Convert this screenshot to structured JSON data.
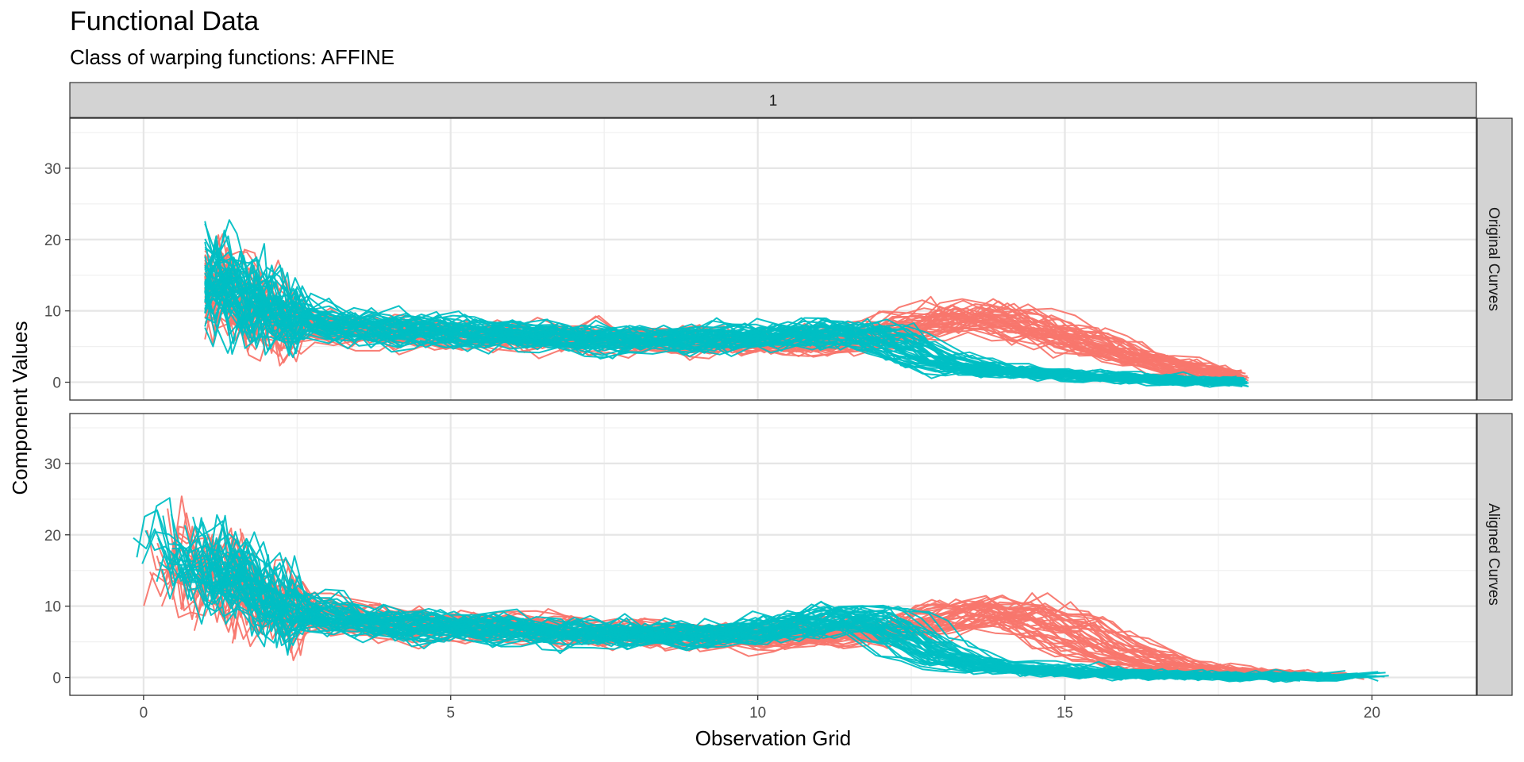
{
  "chart_data": {
    "type": "line",
    "title": "Functional Data",
    "subtitle": "Class of warping functions: AFFINE",
    "xlabel": "Observation Grid",
    "ylabel": "Component Values",
    "column_strip": "1",
    "xlim": [
      -1.2,
      21.7
    ],
    "ylim": [
      -2.5,
      37.0
    ],
    "x_ticks": [
      0,
      5,
      10,
      15,
      20
    ],
    "y_ticks": [
      0,
      10,
      20,
      30
    ],
    "grid": true,
    "legend": "none",
    "colors": {
      "red": "#F8766D",
      "teal": "#00BFC4"
    },
    "panels": [
      {
        "label": "Original Curves",
        "series_color_order": [
          "red",
          "teal"
        ],
        "mean_profiles": {
          "red": {
            "x": [
              1,
              1.25,
              1.5,
              1.75,
              2,
              2.5,
              3,
              4,
              5,
              6,
              7,
              8,
              9,
              10,
              11,
              12,
              12.5,
              13,
              13.5,
              14,
              14.5,
              15,
              15.5,
              16,
              16.5,
              17,
              17.5,
              18
            ],
            "y": [
              14,
              13,
              11.5,
              10,
              9,
              8,
              7.5,
              7,
              6.5,
              6.5,
              6.2,
              6,
              5.6,
              5.5,
              5.5,
              6.5,
              8,
              9,
              9,
              8.5,
              7.5,
              6.2,
              5,
              3.8,
              2.7,
              1.8,
              1.1,
              0.7
            ]
          },
          "teal": {
            "x": [
              1,
              1.25,
              1.5,
              1.75,
              2,
              2.5,
              3,
              4,
              5,
              6,
              7,
              8,
              9,
              10,
              11,
              12,
              12.5,
              13,
              13.5,
              14,
              15,
              16,
              17,
              18
            ],
            "y": [
              15,
              14,
              12,
              11,
              10,
              9,
              8,
              7.5,
              7,
              6.8,
              6.2,
              6,
              6,
              6.3,
              7,
              6.5,
              4,
              2.5,
              2,
              1.5,
              1,
              0.6,
              0.3,
              0
            ]
          }
        }
      },
      {
        "label": "Aligned Curves",
        "series_color_order": [
          "red",
          "teal"
        ],
        "mean_profiles": {
          "red": {
            "x": [
              0,
              0.5,
              1,
              1.5,
              2,
              2.5,
              3,
              4,
              5,
              6,
              7,
              8,
              9,
              10,
              11,
              12,
              12.5,
              13,
              13.5,
              14,
              14.5,
              15,
              15.5,
              16,
              16.5,
              17,
              18,
              19,
              20
            ],
            "y": [
              15,
              16,
              15,
              13,
              11,
              9.5,
              8.5,
              7.5,
              7,
              6.8,
              6.5,
              6.2,
              5.8,
              5.5,
              6,
              6.5,
              7.5,
              8.5,
              9,
              9,
              8.3,
              6.5,
              4.5,
              2.8,
              1.7,
              1,
              0.6,
              0.3,
              0.1
            ]
          },
          "teal": {
            "x": [
              -0.2,
              0.5,
              1,
              1.5,
              2,
              2.5,
              3,
              4,
              5,
              6,
              7,
              8,
              9,
              10,
              11,
              11.5,
              12,
              12.5,
              13,
              14,
              15,
              16,
              17,
              18,
              19,
              20,
              20.6
            ],
            "y": [
              19,
              18,
              16,
              14,
              11,
              9.5,
              8.5,
              7.5,
              7,
              6.8,
              6.3,
              6,
              6,
              6.5,
              8,
              8.5,
              7.5,
              5,
              2.5,
              1.3,
              0.8,
              0.5,
              0.3,
              0.15,
              0.1,
              0.2,
              0.5
            ]
          }
        }
      }
    ]
  }
}
